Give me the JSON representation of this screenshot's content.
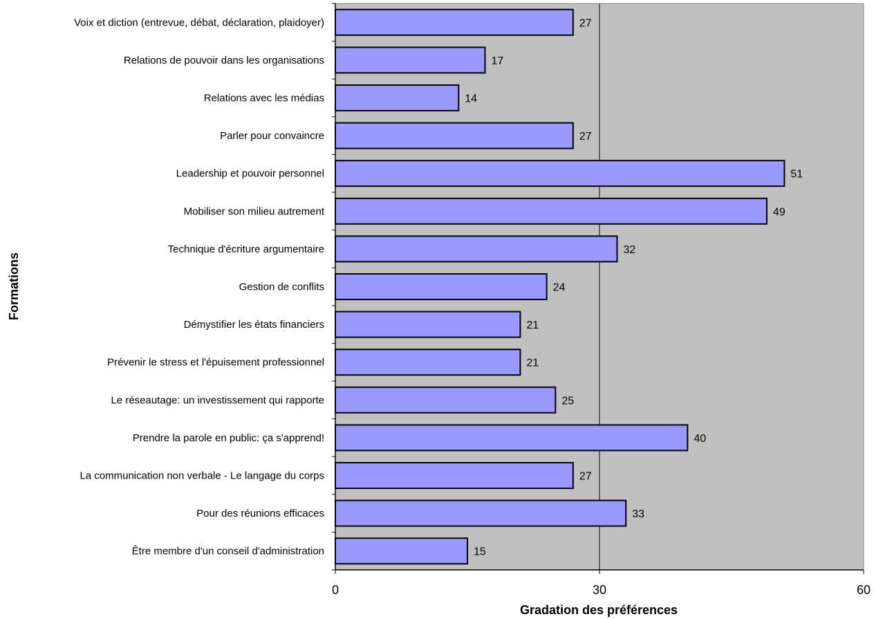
{
  "chart_data": {
    "type": "bar",
    "orientation": "horizontal",
    "categories": [
      "Voix et diction (entrevue, débat, déclaration, plaidoyer)",
      "Relations de pouvoir dans les organisations",
      "Relations avec les médias",
      "Parler pour convaincre",
      "Leadership et pouvoir personnel",
      "Mobiliser son milieu autrement",
      "Technique d'écriture argumentaire",
      "Gestion de conflits",
      "Démystifier les états financiers",
      "Prévenir le stress et l'épuisement professionnel",
      "Le réseautage: un investissement qui rapporte",
      "Prendre la parole en public: ça s'apprend!",
      "La communication non verbale - Le langage du corps",
      "Pour des réunions efficaces",
      "Être membre d'un conseil d'administration"
    ],
    "values": [
      27,
      17,
      14,
      27,
      51,
      49,
      32,
      24,
      21,
      21,
      25,
      40,
      27,
      33,
      15
    ],
    "xlabel": "Gradation des préférences",
    "ylabel": "Formations",
    "xlim": [
      0,
      60
    ],
    "xticks": [
      "0",
      "30",
      "60"
    ],
    "grid": "vertical",
    "data_labels": true,
    "colors": {
      "bar_fill": "#9999ff",
      "bar_stroke": "#000000",
      "plot_background": "#c0c0c0"
    }
  }
}
